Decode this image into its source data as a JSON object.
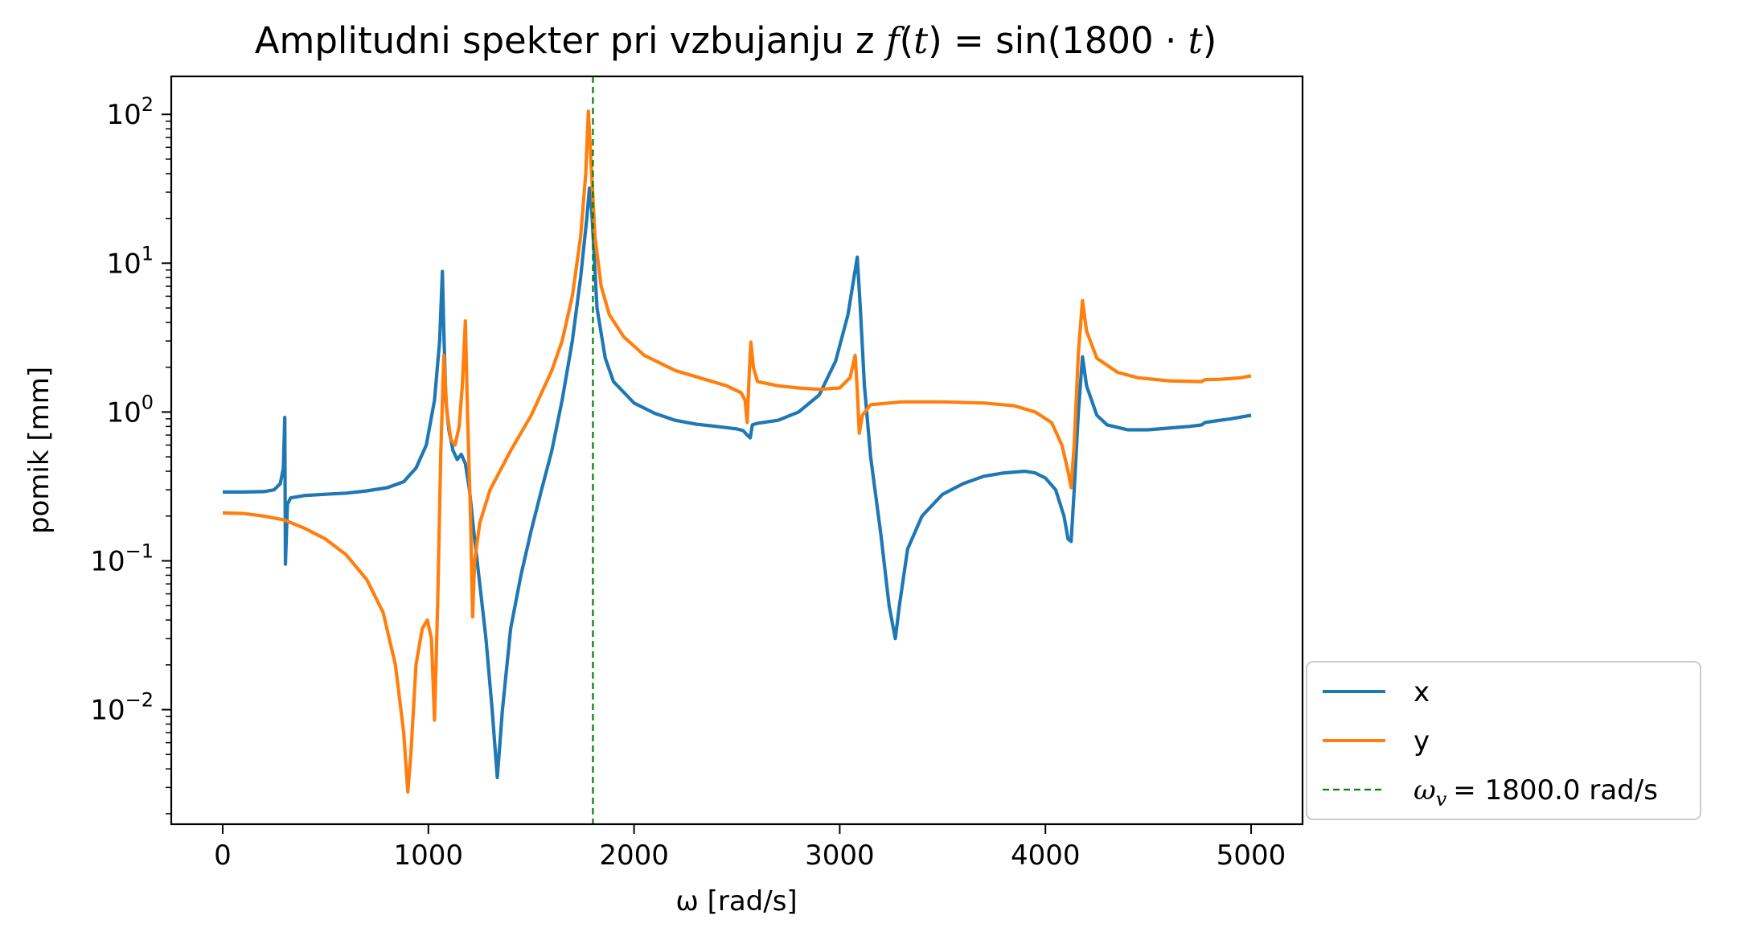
{
  "chart_data": {
    "type": "line",
    "title": "Amplitudni spekter pri vzbujanju z f(t) = sin(1800 · t)",
    "title_parts": [
      "Amplitudni spekter pri vzbujanju z ",
      "f",
      "(",
      "t",
      ") = sin(1800 · ",
      "t",
      ")"
    ],
    "xlabel": "ω [rad/s]",
    "ylabel": "pomik [mm]",
    "xlim": [
      -250,
      5250
    ],
    "ylim": [
      0.0017,
      180
    ],
    "yscale": "log",
    "grid": false,
    "legend_position": "outside-right-bottom",
    "x_ticks": [
      0,
      1000,
      2000,
      3000,
      4000,
      5000
    ],
    "x_tick_labels": [
      "0",
      "1000",
      "2000",
      "3000",
      "4000",
      "5000"
    ],
    "y_ticks": [
      0.01,
      0.1,
      1,
      10,
      100
    ],
    "y_tick_labels": [
      {
        "base": "10",
        "exp": "−2"
      },
      {
        "base": "10",
        "exp": "−1"
      },
      {
        "base": "10",
        "exp": "0"
      },
      {
        "base": "10",
        "exp": "1"
      },
      {
        "base": "10",
        "exp": "2"
      }
    ],
    "series": [
      {
        "name": "x",
        "color": "#1f77b4",
        "points": [
          [
            0,
            0.29
          ],
          [
            100,
            0.29
          ],
          [
            200,
            0.292
          ],
          [
            250,
            0.3
          ],
          [
            280,
            0.33
          ],
          [
            295,
            0.42
          ],
          [
            302,
            0.92
          ],
          [
            305,
            0.095
          ],
          [
            315,
            0.24
          ],
          [
            330,
            0.265
          ],
          [
            400,
            0.275
          ],
          [
            500,
            0.28
          ],
          [
            600,
            0.285
          ],
          [
            700,
            0.295
          ],
          [
            800,
            0.31
          ],
          [
            880,
            0.34
          ],
          [
            940,
            0.42
          ],
          [
            990,
            0.6
          ],
          [
            1030,
            1.2
          ],
          [
            1055,
            3.0
          ],
          [
            1068,
            8.8
          ],
          [
            1075,
            3.5
          ],
          [
            1085,
            1.2
          ],
          [
            1100,
            0.75
          ],
          [
            1120,
            0.55
          ],
          [
            1140,
            0.48
          ],
          [
            1160,
            0.52
          ],
          [
            1180,
            0.45
          ],
          [
            1200,
            0.3
          ],
          [
            1220,
            0.16
          ],
          [
            1250,
            0.07
          ],
          [
            1280,
            0.03
          ],
          [
            1310,
            0.01
          ],
          [
            1335,
            0.0035
          ],
          [
            1360,
            0.01
          ],
          [
            1400,
            0.035
          ],
          [
            1450,
            0.08
          ],
          [
            1500,
            0.16
          ],
          [
            1550,
            0.3
          ],
          [
            1600,
            0.55
          ],
          [
            1650,
            1.2
          ],
          [
            1700,
            3.0
          ],
          [
            1740,
            8.0
          ],
          [
            1770,
            20
          ],
          [
            1783,
            32
          ],
          [
            1795,
            22
          ],
          [
            1820,
            5.0
          ],
          [
            1860,
            2.3
          ],
          [
            1900,
            1.6
          ],
          [
            2000,
            1.15
          ],
          [
            2100,
            0.98
          ],
          [
            2200,
            0.88
          ],
          [
            2300,
            0.83
          ],
          [
            2400,
            0.8
          ],
          [
            2500,
            0.77
          ],
          [
            2530,
            0.75
          ],
          [
            2550,
            0.7
          ],
          [
            2565,
            0.67
          ],
          [
            2575,
            0.82
          ],
          [
            2600,
            0.84
          ],
          [
            2700,
            0.88
          ],
          [
            2800,
            1.0
          ],
          [
            2900,
            1.3
          ],
          [
            2980,
            2.2
          ],
          [
            3040,
            4.5
          ],
          [
            3075,
            9.0
          ],
          [
            3085,
            11
          ],
          [
            3100,
            5.0
          ],
          [
            3120,
            1.5
          ],
          [
            3150,
            0.5
          ],
          [
            3200,
            0.15
          ],
          [
            3240,
            0.05
          ],
          [
            3270,
            0.03
          ],
          [
            3290,
            0.05
          ],
          [
            3330,
            0.12
          ],
          [
            3400,
            0.2
          ],
          [
            3500,
            0.28
          ],
          [
            3600,
            0.33
          ],
          [
            3700,
            0.37
          ],
          [
            3800,
            0.39
          ],
          [
            3900,
            0.4
          ],
          [
            3950,
            0.39
          ],
          [
            4000,
            0.36
          ],
          [
            4050,
            0.3
          ],
          [
            4090,
            0.2
          ],
          [
            4110,
            0.14
          ],
          [
            4125,
            0.135
          ],
          [
            4140,
            0.3
          ],
          [
            4160,
            1.0
          ],
          [
            4180,
            2.35
          ],
          [
            4200,
            1.5
          ],
          [
            4250,
            0.95
          ],
          [
            4300,
            0.82
          ],
          [
            4400,
            0.76
          ],
          [
            4500,
            0.76
          ],
          [
            4600,
            0.78
          ],
          [
            4700,
            0.8
          ],
          [
            4760,
            0.82
          ],
          [
            4775,
            0.85
          ],
          [
            4800,
            0.86
          ],
          [
            4900,
            0.9
          ],
          [
            5000,
            0.95
          ]
        ]
      },
      {
        "name": "y",
        "color": "#ff7f0e",
        "points": [
          [
            0,
            0.21
          ],
          [
            100,
            0.208
          ],
          [
            200,
            0.2
          ],
          [
            300,
            0.188
          ],
          [
            400,
            0.165
          ],
          [
            500,
            0.14
          ],
          [
            600,
            0.11
          ],
          [
            700,
            0.075
          ],
          [
            780,
            0.045
          ],
          [
            840,
            0.02
          ],
          [
            880,
            0.007
          ],
          [
            900,
            0.0028
          ],
          [
            915,
            0.005
          ],
          [
            940,
            0.02
          ],
          [
            970,
            0.035
          ],
          [
            995,
            0.04
          ],
          [
            1015,
            0.03
          ],
          [
            1030,
            0.0085
          ],
          [
            1045,
            0.05
          ],
          [
            1060,
            0.5
          ],
          [
            1075,
            2.4
          ],
          [
            1090,
            1.0
          ],
          [
            1110,
            0.65
          ],
          [
            1130,
            0.6
          ],
          [
            1150,
            0.8
          ],
          [
            1165,
            1.5
          ],
          [
            1180,
            4.1
          ],
          [
            1190,
            1.0
          ],
          [
            1205,
            0.2
          ],
          [
            1215,
            0.042
          ],
          [
            1225,
            0.1
          ],
          [
            1250,
            0.18
          ],
          [
            1300,
            0.3
          ],
          [
            1400,
            0.55
          ],
          [
            1500,
            0.95
          ],
          [
            1600,
            1.9
          ],
          [
            1650,
            3.0
          ],
          [
            1700,
            6.0
          ],
          [
            1740,
            15
          ],
          [
            1765,
            40
          ],
          [
            1778,
            105
          ],
          [
            1790,
            50
          ],
          [
            1810,
            15
          ],
          [
            1840,
            7.0
          ],
          [
            1880,
            4.5
          ],
          [
            1950,
            3.2
          ],
          [
            2050,
            2.4
          ],
          [
            2200,
            1.9
          ],
          [
            2350,
            1.65
          ],
          [
            2450,
            1.5
          ],
          [
            2520,
            1.35
          ],
          [
            2540,
            1.2
          ],
          [
            2550,
            0.85
          ],
          [
            2560,
            1.8
          ],
          [
            2568,
            2.95
          ],
          [
            2580,
            2.0
          ],
          [
            2600,
            1.6
          ],
          [
            2700,
            1.5
          ],
          [
            2800,
            1.45
          ],
          [
            2900,
            1.42
          ],
          [
            3000,
            1.45
          ],
          [
            3050,
            1.7
          ],
          [
            3075,
            2.4
          ],
          [
            3085,
            1.4
          ],
          [
            3095,
            0.72
          ],
          [
            3110,
            0.95
          ],
          [
            3150,
            1.12
          ],
          [
            3300,
            1.17
          ],
          [
            3500,
            1.17
          ],
          [
            3700,
            1.15
          ],
          [
            3850,
            1.1
          ],
          [
            3950,
            1.0
          ],
          [
            4030,
            0.85
          ],
          [
            4080,
            0.6
          ],
          [
            4110,
            0.4
          ],
          [
            4125,
            0.31
          ],
          [
            4140,
            0.6
          ],
          [
            4160,
            2.5
          ],
          [
            4180,
            5.6
          ],
          [
            4200,
            3.5
          ],
          [
            4250,
            2.3
          ],
          [
            4350,
            1.85
          ],
          [
            4450,
            1.7
          ],
          [
            4600,
            1.62
          ],
          [
            4760,
            1.6
          ],
          [
            4775,
            1.65
          ],
          [
            4850,
            1.66
          ],
          [
            4950,
            1.7
          ],
          [
            5000,
            1.75
          ]
        ]
      }
    ],
    "vline": {
      "x": 1800,
      "color": "#008000",
      "style": "dashed",
      "legend_label": "= 1800.0 rad/s",
      "legend_symbol": "ω",
      "legend_sub": "v"
    },
    "legend": [
      {
        "label": "x",
        "color": "#1f77b4",
        "style": "solid"
      },
      {
        "label": "y",
        "color": "#ff7f0e",
        "style": "solid"
      },
      {
        "label": "ω_v = 1800.0 rad/s",
        "color": "#008000",
        "style": "dashed"
      }
    ]
  }
}
